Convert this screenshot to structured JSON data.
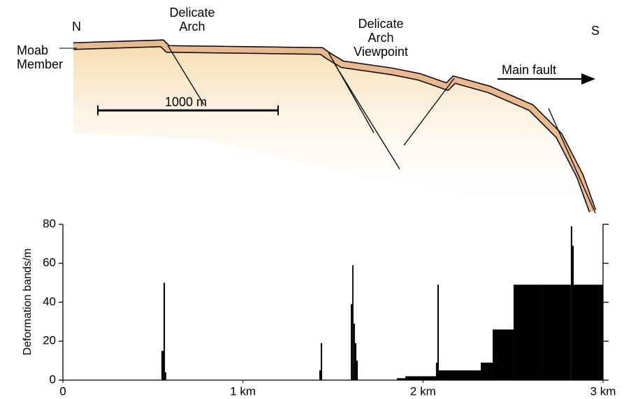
{
  "chart_data": {
    "type": "histogram",
    "ylabel": "Deformation bands/m",
    "annotations": {
      "north": "N",
      "south": "S",
      "arch": "Delicate\nArch",
      "viewpoint": "Delicate\nArch\nViewpoint",
      "member": "Moab\nMember",
      "scale": "1000 m",
      "fault": "Main fault"
    },
    "bins": [
      0,
      0.547,
      0.559,
      0.567,
      0.574,
      1.424,
      1.432,
      1.44,
      1.599,
      1.607,
      1.614,
      1.622,
      1.63,
      1.638,
      1.855,
      1.902,
      2.072,
      2.08,
      2.088,
      2.321,
      2.387,
      2.503,
      2.67,
      2.821,
      2.829,
      2.837,
      3.0
    ],
    "values": [
      0,
      15,
      50,
      4,
      0,
      5,
      19,
      0,
      39,
      59,
      29,
      19,
      10,
      0,
      1,
      2,
      9,
      49,
      5,
      9,
      26,
      49,
      49,
      79,
      69,
      49
    ],
    "color": "#000000",
    "xlim": [
      0,
      3
    ],
    "xticks": [
      0,
      {
        "value": 1,
        "label": "1 km"
      },
      {
        "value": 2,
        "label": "2 km"
      },
      {
        "value": 3,
        "label": "3 km"
      }
    ],
    "ylim": [
      0,
      80
    ],
    "yticks": [
      0,
      20,
      40,
      60,
      80
    ]
  }
}
